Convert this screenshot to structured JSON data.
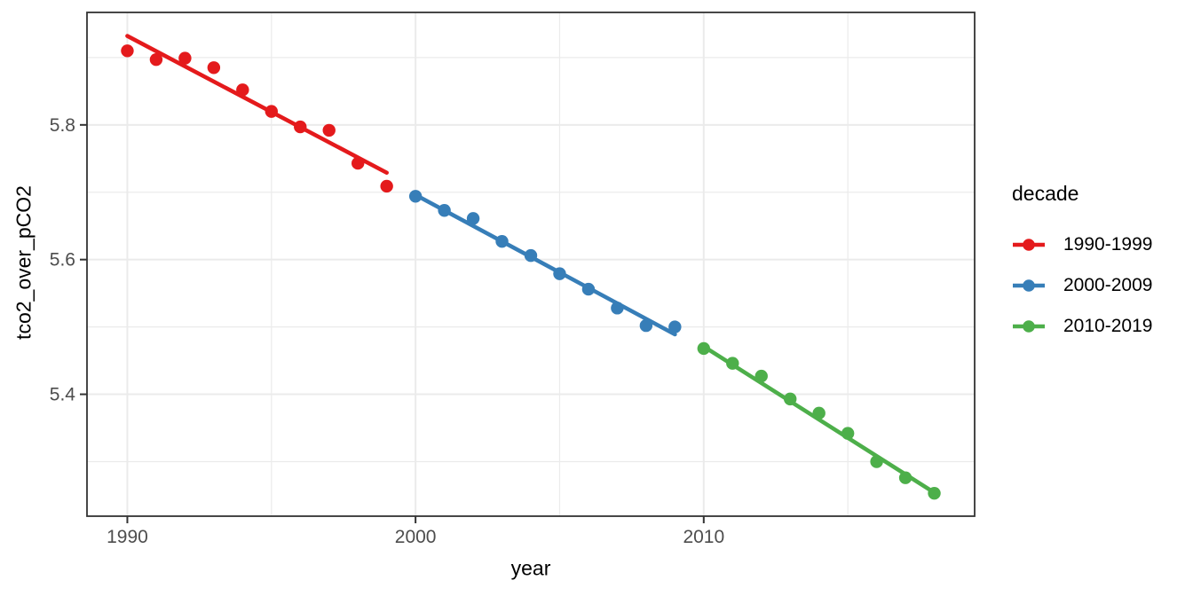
{
  "chart_data": {
    "type": "scatter",
    "title": "",
    "xlabel": "year",
    "ylabel": "tco2_over_pCO2",
    "xlim": [
      1988.6,
      2019.4
    ],
    "ylim": [
      5.219,
      5.967
    ],
    "x_ticks": [
      1990,
      2000,
      2010
    ],
    "x_minor_ticks": [
      1995,
      2005,
      2015
    ],
    "y_ticks": [
      5.4,
      5.6,
      5.8
    ],
    "y_minor_ticks": [
      5.3,
      5.5,
      5.7,
      5.9
    ],
    "grid": true,
    "legend": {
      "title": "decade",
      "position": "right"
    },
    "series": [
      {
        "name": "1990-1999",
        "color": "#E41A1C",
        "x": [
          1990,
          1991,
          1992,
          1993,
          1994,
          1995,
          1996,
          1997,
          1998,
          1999
        ],
        "y": [
          5.91,
          5.897,
          5.899,
          5.885,
          5.852,
          5.82,
          5.797,
          5.792,
          5.743,
          5.709
        ],
        "trend": {
          "x": [
            1990,
            1999
          ],
          "y": [
            5.932,
            5.729
          ]
        }
      },
      {
        "name": "2000-2009",
        "color": "#377EB8",
        "x": [
          2000,
          2001,
          2002,
          2003,
          2004,
          2005,
          2006,
          2007,
          2008,
          2009
        ],
        "y": [
          5.694,
          5.673,
          5.661,
          5.627,
          5.606,
          5.579,
          5.556,
          5.528,
          5.502,
          5.5
        ],
        "trend": {
          "x": [
            2000,
            2009
          ],
          "y": [
            5.696,
            5.489
          ]
        }
      },
      {
        "name": "2010-2019",
        "color": "#4DAF4A",
        "x": [
          2010,
          2011,
          2012,
          2013,
          2014,
          2015,
          2016,
          2017,
          2018
        ],
        "y": [
          5.468,
          5.446,
          5.427,
          5.393,
          5.372,
          5.342,
          5.3,
          5.276,
          5.253
        ],
        "trend": {
          "x": [
            2010,
            2018
          ],
          "y": [
            5.471,
            5.254
          ]
        }
      }
    ],
    "style": {
      "background": "#FFFFFF",
      "grid_color": "#EBEBEB",
      "panel_border_color": "#333333",
      "tick_color": "#333333",
      "tick_label_color": "#4D4D4D",
      "axis_title_color": "#000000"
    }
  }
}
